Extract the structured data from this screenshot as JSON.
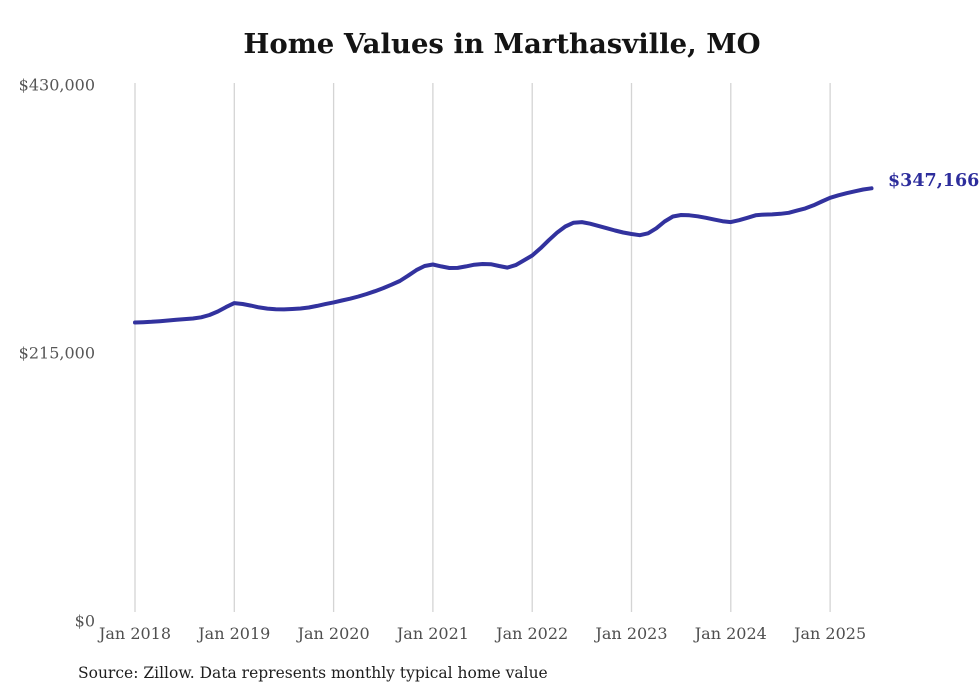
{
  "chart": {
    "title": "Home Values in Marthasville, MO",
    "end_label": "$347,166",
    "source_note": "Source: Zillow. Data represents monthly typical home value"
  },
  "colors": {
    "line": "#32329e",
    "end_label_text": "#2d2d9c",
    "grid": "#d4d4d4",
    "y_tick_text": "#565656",
    "x_tick_text": "#4f4f4f",
    "title_text": "#141414",
    "source_text": "#1e1e1e",
    "background": "#ffffff"
  },
  "chart_data": {
    "type": "line",
    "title": "Home Values in Marthasville, MO",
    "xlabel": "",
    "ylabel": "",
    "unit": "USD",
    "ylim": [
      0,
      430000
    ],
    "grid": "vertical-only",
    "legend": "none",
    "y_ticks": [
      {
        "value": 0,
        "label": "$0"
      },
      {
        "value": 215000,
        "label": "$215,000"
      },
      {
        "value": 430000,
        "label": "$430,000"
      }
    ],
    "x_ticks": [
      {
        "month_index": 0,
        "label": "Jan 2018"
      },
      {
        "month_index": 12,
        "label": "Jan 2019"
      },
      {
        "month_index": 24,
        "label": "Jan 2020"
      },
      {
        "month_index": 36,
        "label": "Jan 2021"
      },
      {
        "month_index": 48,
        "label": "Jan 2022"
      },
      {
        "month_index": 60,
        "label": "Jan 2023"
      },
      {
        "month_index": 72,
        "label": "Jan 2024"
      },
      {
        "month_index": 84,
        "label": "Jan 2025"
      }
    ],
    "start_month": "2018-01",
    "end_month": "2025-06",
    "latest_value": 347166,
    "latest_value_label": "$347,166",
    "series": [
      {
        "name": "Typical home value",
        "monthly_values": [
          239500,
          239700,
          240000,
          240500,
          241100,
          241700,
          242200,
          242700,
          243600,
          245500,
          248300,
          251800,
          255000,
          254300,
          253000,
          251600,
          250600,
          250100,
          250000,
          250300,
          250700,
          251500,
          252800,
          254200,
          255600,
          257100,
          258600,
          260300,
          262300,
          264600,
          267100,
          269800,
          272800,
          277000,
          281500,
          284800,
          286000,
          284500,
          283200,
          283300,
          284500,
          285800,
          286400,
          286200,
          284800,
          283500,
          285500,
          289300,
          293200,
          299000,
          305500,
          311500,
          316500,
          319500,
          320000,
          318700,
          317000,
          315100,
          313300,
          311700,
          310500,
          309500,
          311000,
          315000,
          320500,
          324500,
          325700,
          325500,
          324700,
          323500,
          322000,
          320700,
          320000,
          321500,
          323500,
          325500,
          326000,
          326200,
          326700,
          327500,
          329200,
          331000,
          333500,
          336500,
          339500,
          341500,
          343200,
          344700,
          346200,
          347166
        ]
      }
    ]
  }
}
